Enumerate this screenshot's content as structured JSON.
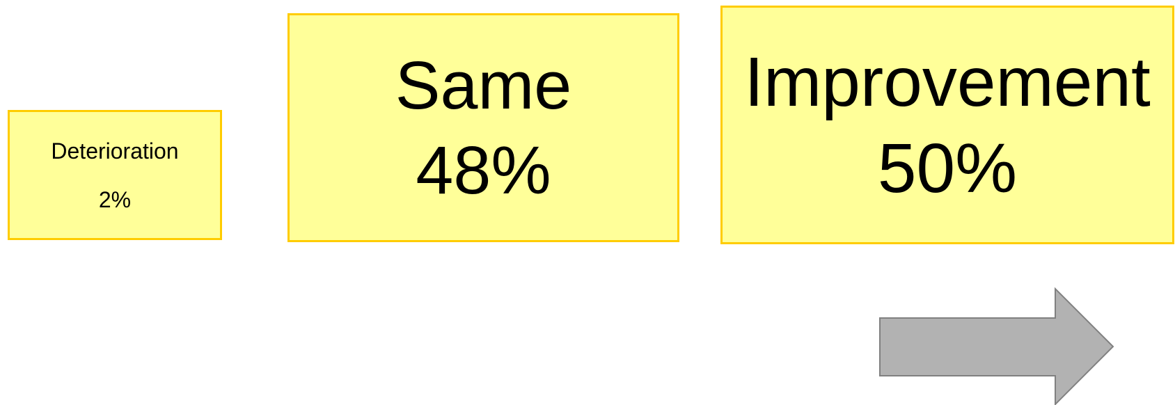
{
  "boxes": [
    {
      "label": "Deterioration",
      "value": "2%"
    },
    {
      "label": "Same",
      "value": "48%"
    },
    {
      "label": "Improvement",
      "value": "50%"
    }
  ]
}
